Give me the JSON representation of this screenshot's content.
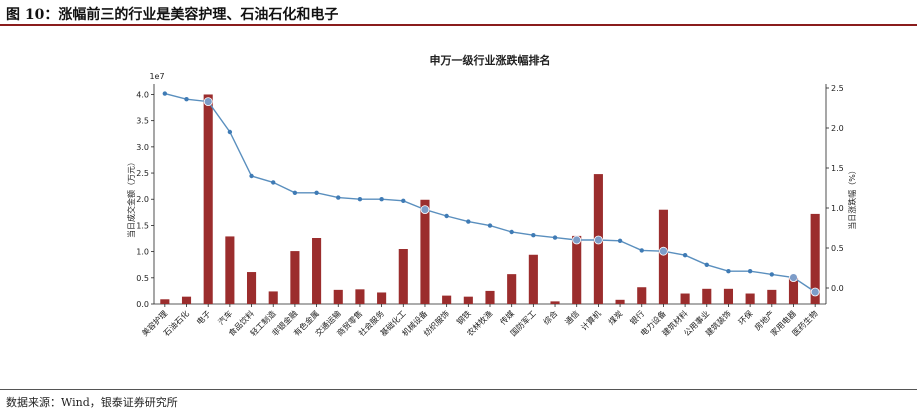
{
  "figure": {
    "caption": "图 10：涨幅前三的行业是美容护理、石油石化和电子",
    "source": "数据来源：Wind，银泰证券研究所"
  },
  "chart_data": {
    "type": "bar+line",
    "title": "申万一级行业涨跌幅排名",
    "left_axis": {
      "label": "当日成交金额（万元）",
      "ylim": [
        0,
        42000000.0
      ],
      "ticks": [
        0,
        5000000,
        10000000,
        15000000,
        20000000,
        25000000,
        30000000,
        35000000,
        40000000
      ],
      "tick_labels": [
        "0.0",
        "0.5",
        "1.0",
        "1.5",
        "2.0",
        "2.5",
        "3.0",
        "3.5",
        "4.0"
      ],
      "multiplier": "1e7"
    },
    "right_axis": {
      "label": "当日涨跌幅（%）",
      "ylim": [
        -0.2,
        2.55
      ],
      "ticks": [
        0.0,
        0.5,
        1.0,
        1.5,
        2.0,
        2.5
      ],
      "tick_labels": [
        "0.0",
        "0.5",
        "1.0",
        "1.5",
        "2.0",
        "2.5"
      ]
    },
    "categories": [
      "美容护理",
      "石油石化",
      "电子",
      "汽车",
      "食品饮料",
      "轻工制造",
      "非银金融",
      "有色金属",
      "交通运输",
      "商贸零售",
      "社会服务",
      "基础化工",
      "机械设备",
      "纺织服饰",
      "钢铁",
      "农林牧渔",
      "传媒",
      "国防军工",
      "综合",
      "通信",
      "计算机",
      "煤炭",
      "银行",
      "电力设备",
      "建筑材料",
      "公用事业",
      "建筑装饰",
      "环保",
      "房地产",
      "家用电器",
      "医药生物"
    ],
    "series": [
      {
        "kind": "bar",
        "values": [
          900000,
          1400000,
          40000000,
          12900000,
          6100000,
          2400000,
          10100000,
          12600000,
          2700000,
          2800000,
          2200000,
          10500000,
          19900000,
          1600000,
          1400000,
          2500000,
          5700000,
          9400000,
          500000,
          13000000,
          24800000,
          800000,
          3200000,
          18000000,
          2000000,
          2900000,
          2900000,
          2000000,
          2700000,
          5000000,
          17200000
        ]
      },
      {
        "kind": "line",
        "values": [
          2.43,
          2.36,
          2.33,
          1.95,
          1.4,
          1.32,
          1.19,
          1.19,
          1.13,
          1.11,
          1.11,
          1.09,
          0.98,
          0.9,
          0.83,
          0.78,
          0.7,
          0.66,
          0.63,
          0.6,
          0.6,
          0.59,
          0.47,
          0.46,
          0.41,
          0.29,
          0.21,
          0.21,
          0.17,
          0.13,
          -0.05
        ]
      }
    ],
    "highlighted_points": [
      2,
      12,
      19,
      20,
      23,
      29,
      30
    ],
    "colors": {
      "bar": "#9b2d2d",
      "line": "#5a8fbe",
      "marker": "#3f7bb5",
      "highlight": "#7d9cc8"
    }
  }
}
